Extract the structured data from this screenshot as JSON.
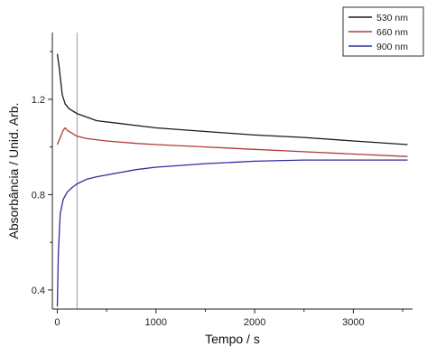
{
  "chart_data": {
    "type": "line",
    "title": "",
    "xlabel": "Tempo / s",
    "ylabel": "Absorbância / Unid. Arb.",
    "xlim": [
      -50,
      3600
    ],
    "ylim": [
      0.32,
      1.48
    ],
    "xticks": [
      0,
      1000,
      2000,
      3000
    ],
    "xtick_labels": [
      "0",
      "1000",
      "2000",
      "3000"
    ],
    "yticks": [
      0.4,
      0.8,
      1.2
    ],
    "ytick_labels": [
      "0.4",
      "0.8",
      "1.2"
    ],
    "grid": false,
    "legend_position": "top-right",
    "reference_line_x": 200,
    "series": [
      {
        "name": "530 nm",
        "color": "#1a1a1a",
        "x": [
          0,
          20,
          50,
          80,
          120,
          160,
          200,
          300,
          400,
          600,
          800,
          1000,
          1500,
          2000,
          2500,
          3000,
          3550
        ],
        "y": [
          1.39,
          1.33,
          1.22,
          1.18,
          1.16,
          1.15,
          1.14,
          1.125,
          1.11,
          1.1,
          1.09,
          1.08,
          1.065,
          1.05,
          1.04,
          1.025,
          1.01
        ]
      },
      {
        "name": "660 nm",
        "color": "#b03a3a",
        "x": [
          0,
          30,
          60,
          80,
          100,
          140,
          200,
          300,
          500,
          800,
          1000,
          1500,
          2000,
          2500,
          3000,
          3550
        ],
        "y": [
          1.01,
          1.04,
          1.07,
          1.08,
          1.07,
          1.06,
          1.045,
          1.035,
          1.025,
          1.015,
          1.01,
          1.0,
          0.99,
          0.98,
          0.97,
          0.96
        ]
      },
      {
        "name": "900 nm",
        "color": "#2e2e9e",
        "x": [
          0,
          10,
          30,
          60,
          100,
          150,
          200,
          300,
          400,
          600,
          800,
          1000,
          1500,
          2000,
          2500,
          3000,
          3550
        ],
        "y": [
          0.33,
          0.55,
          0.72,
          0.78,
          0.81,
          0.83,
          0.845,
          0.865,
          0.875,
          0.89,
          0.905,
          0.915,
          0.93,
          0.94,
          0.945,
          0.945,
          0.945
        ]
      }
    ]
  }
}
